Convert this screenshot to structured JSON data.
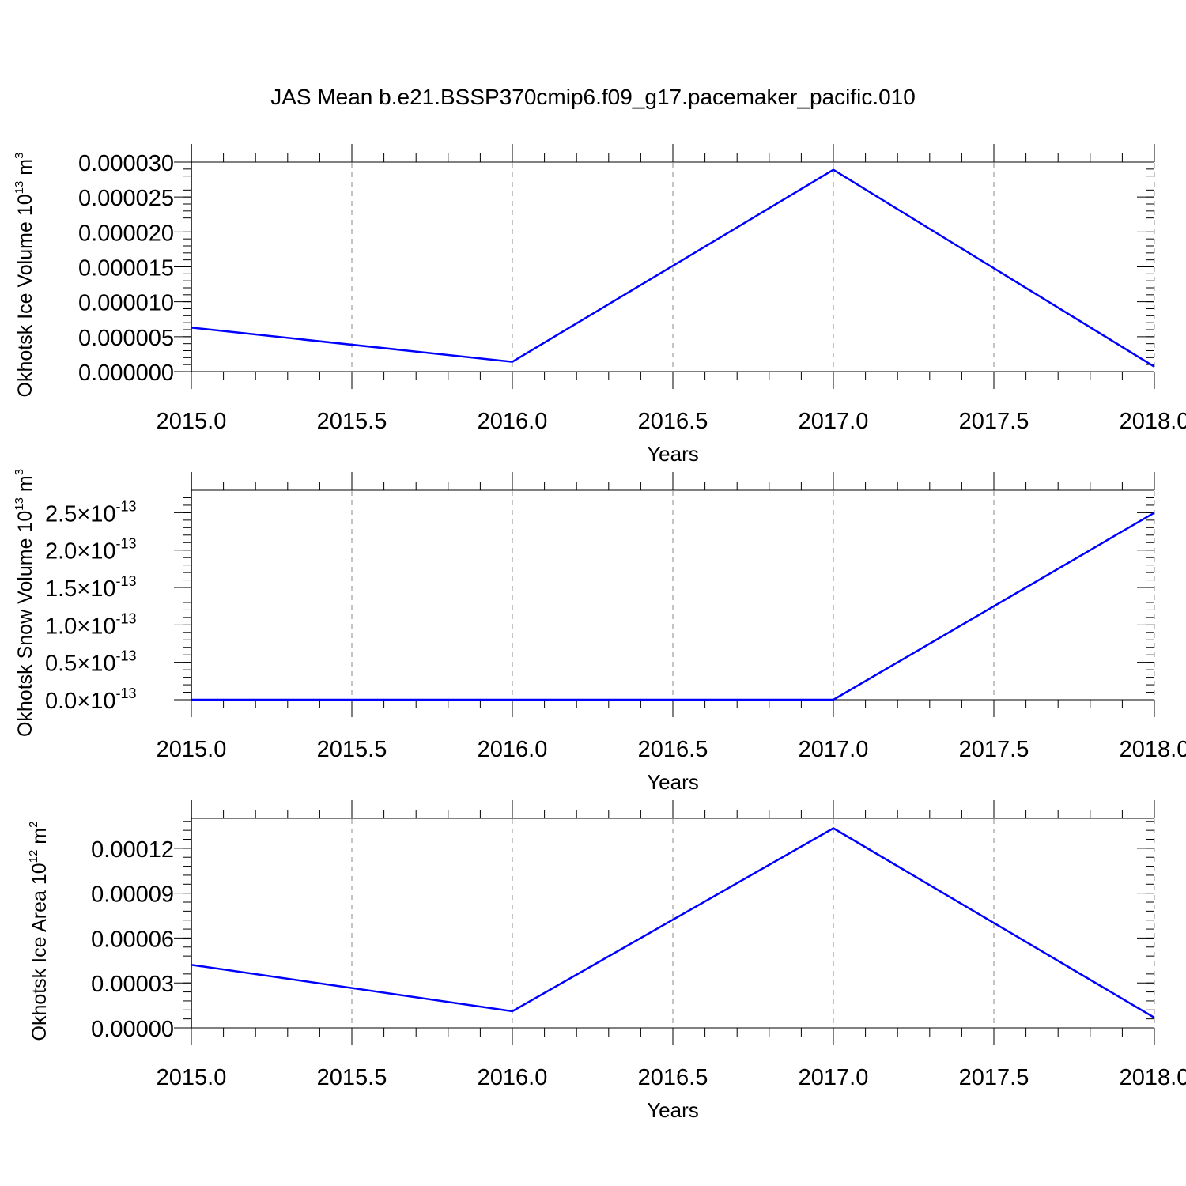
{
  "title": "JAS Mean b.e21.BSSP370cmip6.f09_g17.pacemaker_pacific.010",
  "line_color": "#0000ff",
  "chart_data": [
    {
      "type": "line",
      "ylabel": "Okhotsk Ice Volume 10",
      "ylabel_exp": "13",
      "ylabel_unit": " m",
      "ylabel_unit_exp": "3",
      "xlabel": "Years",
      "xlim": [
        2015,
        2018
      ],
      "ylim": [
        0,
        3e-05
      ],
      "x_ticks": [
        "2015.0",
        "2015.5",
        "2016.0",
        "2016.5",
        "2017.0",
        "2017.5",
        "2018.0"
      ],
      "y_ticks": [
        {
          "v": 0.0,
          "label": "0.000000"
        },
        {
          "v": 5e-06,
          "label": "0.000005"
        },
        {
          "v": 1e-05,
          "label": "0.000010"
        },
        {
          "v": 1.5e-05,
          "label": "0.000015"
        },
        {
          "v": 2e-05,
          "label": "0.000020"
        },
        {
          "v": 2.5e-05,
          "label": "0.000025"
        },
        {
          "v": 3e-05,
          "label": "0.000030"
        }
      ],
      "series": [
        {
          "x": [
            2015,
            2016,
            2017,
            2018
          ],
          "y": [
            6.3e-06,
            1.4e-06,
            2.89e-05,
            7e-07
          ]
        }
      ]
    },
    {
      "type": "line",
      "ylabel": "Okhotsk Snow Volume 10",
      "ylabel_exp": "13",
      "ylabel_unit": " m",
      "ylabel_unit_exp": "3",
      "xlabel": "Years",
      "xlim": [
        2015,
        2018
      ],
      "ylim": [
        0,
        2.8e-13
      ],
      "x_ticks": [
        "2015.0",
        "2015.5",
        "2016.0",
        "2016.5",
        "2017.0",
        "2017.5",
        "2018.0"
      ],
      "y_ticks": [
        {
          "v": 0.0,
          "label": "0.0",
          "sci": "×10",
          "exp": "-13"
        },
        {
          "v": 5e-14,
          "label": "0.5",
          "sci": "×10",
          "exp": "-13"
        },
        {
          "v": 1e-13,
          "label": "1.0",
          "sci": "×10",
          "exp": "-13"
        },
        {
          "v": 1.5e-13,
          "label": "1.5",
          "sci": "×10",
          "exp": "-13"
        },
        {
          "v": 2e-13,
          "label": "2.0",
          "sci": "×10",
          "exp": "-13"
        },
        {
          "v": 2.5e-13,
          "label": "2.5",
          "sci": "×10",
          "exp": "-13"
        }
      ],
      "series": [
        {
          "x": [
            2015,
            2016,
            2017,
            2018
          ],
          "y": [
            0.0,
            0.0,
            0.0,
            2.5e-13
          ]
        }
      ]
    },
    {
      "type": "line",
      "ylabel": "Okhotsk Ice Area 10",
      "ylabel_exp": "12",
      "ylabel_unit": " m",
      "ylabel_unit_exp": "2",
      "xlabel": "Years",
      "xlim": [
        2015,
        2018
      ],
      "ylim": [
        0,
        0.00014
      ],
      "x_ticks": [
        "2015.0",
        "2015.5",
        "2016.0",
        "2016.5",
        "2017.0",
        "2017.5",
        "2018.0"
      ],
      "y_ticks": [
        {
          "v": 0.0,
          "label": "0.00000"
        },
        {
          "v": 3e-05,
          "label": "0.00003"
        },
        {
          "v": 6e-05,
          "label": "0.00006"
        },
        {
          "v": 9e-05,
          "label": "0.00009"
        },
        {
          "v": 0.00012,
          "label": "0.00012"
        }
      ],
      "series": [
        {
          "x": [
            2015,
            2016,
            2017,
            2018
          ],
          "y": [
            4.21e-05,
            1.11e-05,
            0.0001334,
            6.8e-06
          ]
        }
      ]
    }
  ]
}
